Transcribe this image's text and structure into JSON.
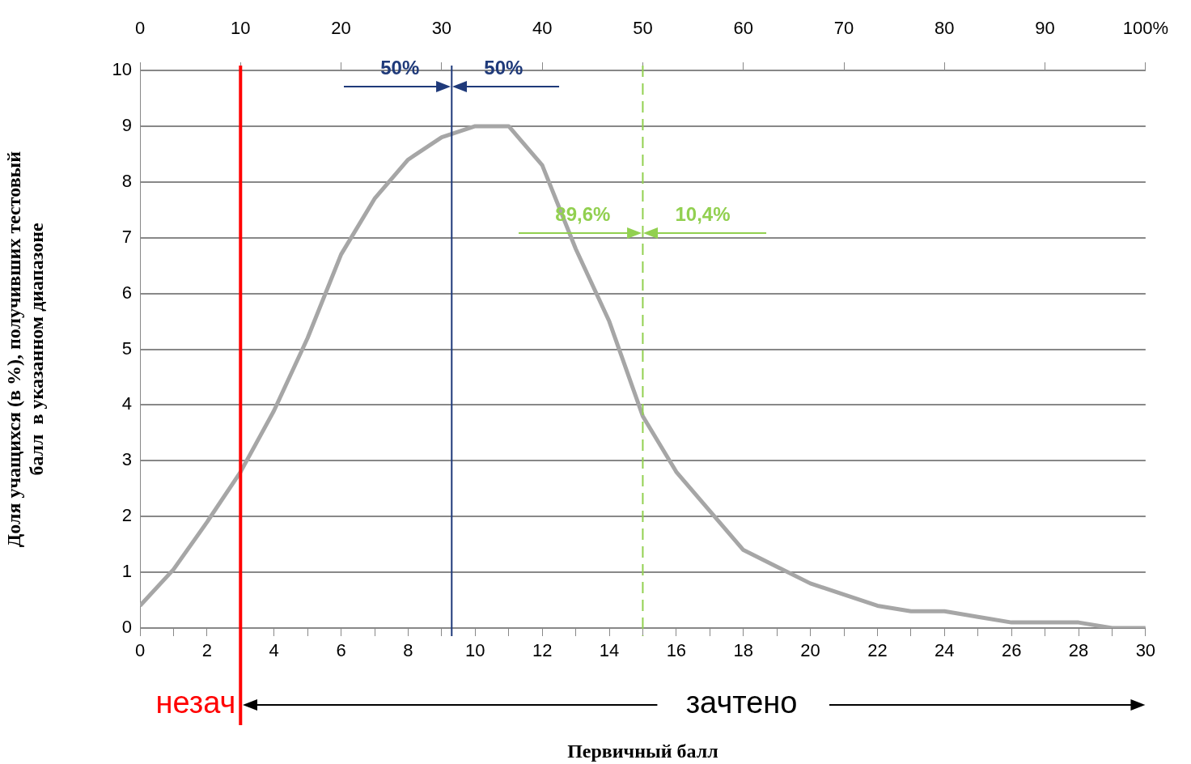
{
  "chart_data": {
    "type": "line",
    "xlabel": "Первичный балл",
    "ylabel": "Доля учащихся (в %), получивших тестовый\nбалл  в указанном диапазоне",
    "x": [
      0,
      1,
      2,
      3,
      4,
      5,
      6,
      7,
      8,
      9,
      10,
      11,
      12,
      13,
      14,
      15,
      16,
      17,
      18,
      19,
      20,
      21,
      22,
      23,
      24,
      25,
      26,
      27,
      28,
      29,
      30
    ],
    "series": [
      {
        "color": "#a6a6a6",
        "values": [
          0.4,
          1.05,
          1.9,
          2.8,
          3.9,
          5.2,
          6.7,
          7.7,
          8.4,
          8.8,
          9.0,
          9.0,
          8.3,
          6.8,
          5.5,
          3.8,
          2.8,
          2.1,
          1.4,
          1.1,
          0.8,
          0.6,
          0.4,
          0.3,
          0.3,
          0.2,
          0.1,
          0.1,
          0.1,
          0.0,
          0.0
        ]
      }
    ],
    "xlim": [
      0,
      30
    ],
    "xticks": [
      0,
      {
        "value": 1,
        "label": null
      },
      2,
      {
        "value": 3,
        "label": null
      },
      4,
      {
        "value": 5,
        "label": null
      },
      6,
      {
        "value": 7,
        "label": null
      },
      8,
      {
        "value": 9,
        "label": null
      },
      10,
      {
        "value": 11,
        "label": null
      },
      12,
      {
        "value": 13,
        "label": null
      },
      14,
      {
        "value": 15,
        "label": null
      },
      16,
      {
        "value": 17,
        "label": null
      },
      18,
      {
        "value": 19,
        "label": null
      },
      20,
      {
        "value": 21,
        "label": null
      },
      22,
      {
        "value": 23,
        "label": null
      },
      24,
      {
        "value": 25,
        "label": null
      },
      26,
      {
        "value": 27,
        "label": null
      },
      28,
      {
        "value": 29,
        "label": null
      },
      30
    ],
    "x2lim": [
      0,
      100
    ],
    "x2ticks": [
      0,
      10,
      20,
      30,
      40,
      50,
      60,
      70,
      80,
      90,
      {
        "value": 100,
        "label": "100%"
      }
    ],
    "ylim": [
      0,
      10
    ],
    "yticks": [
      0,
      1,
      2,
      3,
      4,
      5,
      6,
      7,
      8,
      9,
      10
    ],
    "grid": "y",
    "marker": "none",
    "legend": false,
    "ref_lines": [
      {
        "axis": "x",
        "value": 3,
        "label": "незач",
        "color": "#ff0000"
      },
      {
        "axis": "x",
        "value": 9.3,
        "label": null,
        "color": "#1f3a7a"
      },
      {
        "axis": "x",
        "value": 15,
        "label": null,
        "color": "#92d050",
        "line_style": "dashed"
      }
    ],
    "annotations": [
      "50%",
      "50%",
      "89,6%",
      "10,4%",
      "зачтено"
    ]
  }
}
